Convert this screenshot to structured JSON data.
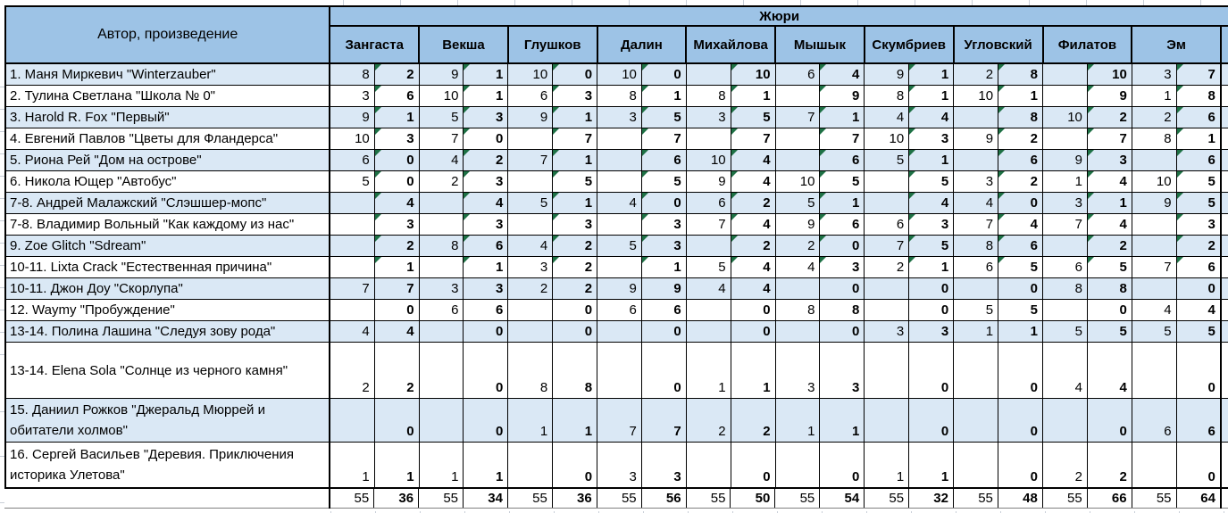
{
  "table": {
    "corner_header": "Автор, произведение",
    "group_header": "Жюри",
    "jurors": [
      "Зангаста",
      "Векша",
      "Глушков",
      "Далин",
      "Михайлова",
      "Мышык",
      "Скумбриев",
      "Угловский",
      "Филатов",
      "Эм"
    ],
    "rows": [
      {
        "author": "1. Маня Миркевич \"Winterzauber\"",
        "cells": [
          "8",
          "2",
          "9",
          "1",
          "10",
          "0",
          "10",
          "0",
          "",
          "10",
          "6",
          "4",
          "9",
          "1",
          "2",
          "8",
          "",
          "10",
          "3",
          "7"
        ],
        "flagged": true
      },
      {
        "author": "2. Тулина Светлана \"Школа № 0\"",
        "cells": [
          "3",
          "6",
          "10",
          "1",
          "6",
          "3",
          "8",
          "1",
          "8",
          "1",
          "",
          "9",
          "8",
          "1",
          "10",
          "1",
          "",
          "9",
          "1",
          "8"
        ],
        "flagged": true
      },
      {
        "author": "3. Harold R. Fox \"Первый\"",
        "cells": [
          "9",
          "1",
          "5",
          "3",
          "9",
          "1",
          "3",
          "5",
          "3",
          "5",
          "7",
          "1",
          "4",
          "4",
          "",
          "8",
          "10",
          "2",
          "2",
          "6"
        ],
        "flagged": true
      },
      {
        "author": "4. Евгений Павлов \"Цветы для Фландерса\"",
        "cells": [
          "10",
          "3",
          "7",
          "0",
          "",
          "7",
          "",
          "7",
          "",
          "7",
          "",
          "7",
          "10",
          "3",
          "9",
          "2",
          "",
          "7",
          "8",
          "1"
        ],
        "flagged": true
      },
      {
        "author": "5. Риона Рей \"Дом на острове\"",
        "cells": [
          "6",
          "0",
          "4",
          "2",
          "7",
          "1",
          "",
          "6",
          "10",
          "4",
          "",
          "6",
          "5",
          "1",
          "",
          "6",
          "9",
          "3",
          "",
          "6"
        ],
        "flagged": true
      },
      {
        "author": "6. Никола Ющер \"Автобус\"",
        "cells": [
          "5",
          "0",
          "2",
          "3",
          "",
          "5",
          "",
          "5",
          "9",
          "4",
          "10",
          "5",
          "",
          "5",
          "3",
          "2",
          "1",
          "4",
          "10",
          "5"
        ],
        "flagged": true
      },
      {
        "author": "7-8. Андрей Малажский \"Слэшшер-мопс\"",
        "cells": [
          "",
          "4",
          "",
          "4",
          "5",
          "1",
          "4",
          "0",
          "6",
          "2",
          "5",
          "1",
          "",
          "4",
          "4",
          "0",
          "3",
          "1",
          "9",
          "5"
        ],
        "flagged": true
      },
      {
        "author": "7-8. Владимир Вольный \"Как каждому из нас\"",
        "cells": [
          "",
          "3",
          "",
          "3",
          "",
          "3",
          "",
          "3",
          "7",
          "4",
          "9",
          "6",
          "6",
          "3",
          "7",
          "4",
          "7",
          "4",
          "",
          "3"
        ],
        "flagged": true
      },
      {
        "author": "9. Zoe Glitch \"Sdream\"",
        "cells": [
          "",
          "2",
          "8",
          "6",
          "4",
          "2",
          "5",
          "3",
          "",
          "2",
          "2",
          "0",
          "7",
          "5",
          "8",
          "6",
          "",
          "2",
          "",
          "2"
        ],
        "flagged": true
      },
      {
        "author": "10-11. Lixta Crack \"Естественная причина\"",
        "cells": [
          "",
          "1",
          "",
          "1",
          "3",
          "2",
          "",
          "1",
          "5",
          "4",
          "4",
          "3",
          "2",
          "1",
          "6",
          "5",
          "6",
          "5",
          "7",
          "6"
        ],
        "flagged": true
      },
      {
        "author": "10-11. Джон Доу \"Скорлупа\"",
        "cells": [
          "7",
          "7",
          "3",
          "3",
          "2",
          "2",
          "9",
          "9",
          "4",
          "4",
          "",
          "0",
          "",
          "0",
          "",
          "0",
          "8",
          "8",
          "",
          "0"
        ],
        "flagged": false
      },
      {
        "author": "12. Waymy \"Пробуждение\"",
        "cells": [
          "",
          "0",
          "6",
          "6",
          "",
          "0",
          "6",
          "6",
          "",
          "0",
          "8",
          "8",
          "",
          "0",
          "5",
          "5",
          "",
          "0",
          "4",
          "4"
        ],
        "flagged": false
      },
      {
        "author": "13-14. Полина Лашина \"Следуя зову рода\"",
        "cells": [
          "4",
          "4",
          "",
          "0",
          "",
          "0",
          "",
          "0",
          "",
          "0",
          "",
          "0",
          "3",
          "3",
          "1",
          "1",
          "5",
          "5",
          "5",
          "5"
        ],
        "flagged": false
      },
      {
        "author": "13-14. Elena Sola \"Солнце из черного камня\"",
        "cells": [
          "2",
          "2",
          "",
          "0",
          "8",
          "8",
          "",
          "0",
          "1",
          "1",
          "3",
          "3",
          "",
          "0",
          "",
          "0",
          "4",
          "4",
          "",
          "0"
        ],
        "flagged": false
      },
      {
        "author": "15. Даниил Рожков \"Джеральд Мюррей и обитатели холмов\"",
        "cells": [
          "",
          "0",
          "",
          "0",
          "1",
          "1",
          "7",
          "7",
          "2",
          "2",
          "1",
          "1",
          "",
          "0",
          "",
          "0",
          "",
          "0",
          "6",
          "6"
        ],
        "flagged": false
      },
      {
        "author": "16. Сергей Васильев \"Деревия. Приключения историка Улетова\"",
        "cells": [
          "1",
          "1",
          "1",
          "1",
          "",
          "0",
          "3",
          "3",
          "",
          "0",
          "",
          "0",
          "1",
          "1",
          "",
          "0",
          "2",
          "2",
          "",
          "0"
        ],
        "flagged": false
      }
    ],
    "totals": [
      "55",
      "36",
      "55",
      "34",
      "55",
      "36",
      "55",
      "56",
      "55",
      "50",
      "55",
      "54",
      "55",
      "32",
      "55",
      "48",
      "55",
      "66",
      "55",
      "64"
    ]
  },
  "colors": {
    "header_blue": "#9DC3E6",
    "stripe_blue": "#DAE8F5",
    "flag_green": "#1E7145"
  }
}
